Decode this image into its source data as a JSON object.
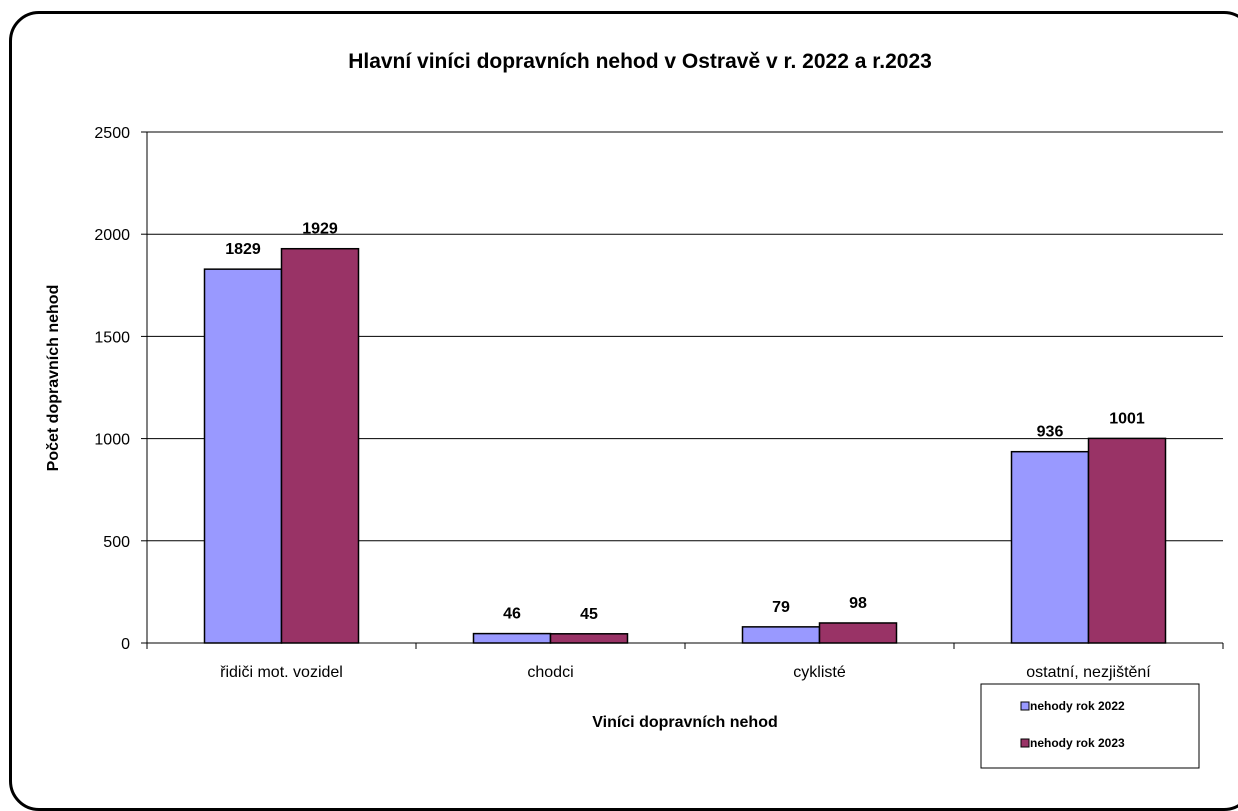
{
  "chart_data": {
    "type": "bar",
    "title": "Hlavní viníci dopravních nehod v Ostravě v r. 2022 a r.2023",
    "xlabel": "Viníci  dopravních  nehod",
    "ylabel": "Počet dopravních nehod",
    "categories": [
      "řidiči mot. vozidel",
      "chodci",
      "cyklisté",
      "ostatní, nezjištění"
    ],
    "series": [
      {
        "name": "nehody rok 2022",
        "values": [
          1829,
          46,
          79,
          936
        ],
        "color": "#9999ff"
      },
      {
        "name": "nehody rok 2023",
        "values": [
          1929,
          45,
          98,
          1001
        ],
        "color": "#993366"
      }
    ],
    "ylim": [
      0,
      2500
    ],
    "yticks": [
      0,
      500,
      1000,
      1500,
      2000,
      2500
    ],
    "grid": true,
    "legend": "bottom-right"
  }
}
